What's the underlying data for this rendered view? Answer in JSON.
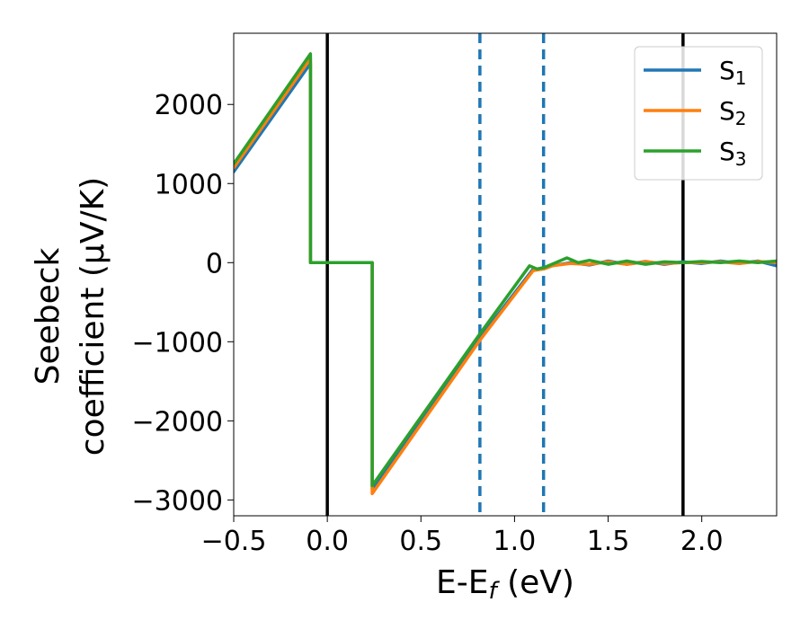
{
  "chart_data": {
    "type": "line",
    "xlabel": "E-E",
    "xlabel_sub": "f",
    "xlabel_unit": " (eV)",
    "ylabel_line1": "Seebeck",
    "ylabel_line2": "coefficient  (μV/K)",
    "xlim": [
      -0.5,
      2.4
    ],
    "ylim": [
      -3200,
      2900
    ],
    "xticks": [
      -0.5,
      0.0,
      0.5,
      1.0,
      1.5,
      2.0
    ],
    "xtick_labels": [
      "−0.5",
      "0.0",
      "0.5",
      "1.0",
      "1.5",
      "2.0"
    ],
    "yticks": [
      -3000,
      -2000,
      -1000,
      0,
      1000,
      2000
    ],
    "ytick_labels": [
      "−3000",
      "−2000",
      "−1000",
      "0",
      "1000",
      "2000"
    ],
    "grid": false,
    "legend_position": "top-right",
    "vlines_solid": [
      0.0,
      1.9
    ],
    "vlines_dashed": [
      0.815,
      1.155
    ],
    "vline_solid_color": "#000000",
    "vline_dashed_color": "#1f77b4",
    "series": [
      {
        "name": "S",
        "sub": "1",
        "color": "#1f77b4",
        "x": [
          -0.5,
          -0.09,
          -0.09,
          0.24,
          0.24,
          0.815,
          1.1,
          1.155,
          1.2,
          1.3,
          1.4,
          1.5,
          1.6,
          1.7,
          1.8,
          1.9,
          2.0,
          2.1,
          2.2,
          2.3,
          2.4
        ],
        "y": [
          1150,
          2520,
          0,
          0,
          -2870,
          -950,
          -80,
          -80,
          -40,
          0,
          -30,
          20,
          -20,
          15,
          -20,
          10,
          -10,
          20,
          -10,
          20,
          -40
        ]
      },
      {
        "name": "S",
        "sub": "2",
        "color": "#ff7f0e",
        "x": [
          -0.5,
          -0.09,
          -0.09,
          0.24,
          0.24,
          0.815,
          1.1,
          1.155,
          1.2,
          1.3,
          1.4,
          1.5,
          1.6,
          1.7,
          1.8,
          1.9,
          2.0,
          2.1,
          2.2,
          2.3,
          2.4
        ],
        "y": [
          1200,
          2580,
          0,
          0,
          -2920,
          -980,
          -100,
          -80,
          -40,
          -10,
          -20,
          10,
          -20,
          10,
          -10,
          0,
          0,
          10,
          -10,
          15,
          0
        ]
      },
      {
        "name": "S",
        "sub": "3",
        "color": "#2ca02c",
        "x": [
          -0.5,
          -0.09,
          -0.09,
          0.24,
          0.24,
          0.815,
          1.08,
          1.12,
          1.16,
          1.22,
          1.28,
          1.34,
          1.4,
          1.5,
          1.6,
          1.7,
          1.8,
          1.9,
          2.0,
          2.1,
          2.2,
          2.3,
          2.4
        ],
        "y": [
          1250,
          2640,
          0,
          0,
          -2820,
          -900,
          -40,
          -80,
          -60,
          0,
          60,
          0,
          30,
          -20,
          20,
          -20,
          10,
          0,
          15,
          0,
          20,
          0,
          20
        ]
      }
    ]
  }
}
